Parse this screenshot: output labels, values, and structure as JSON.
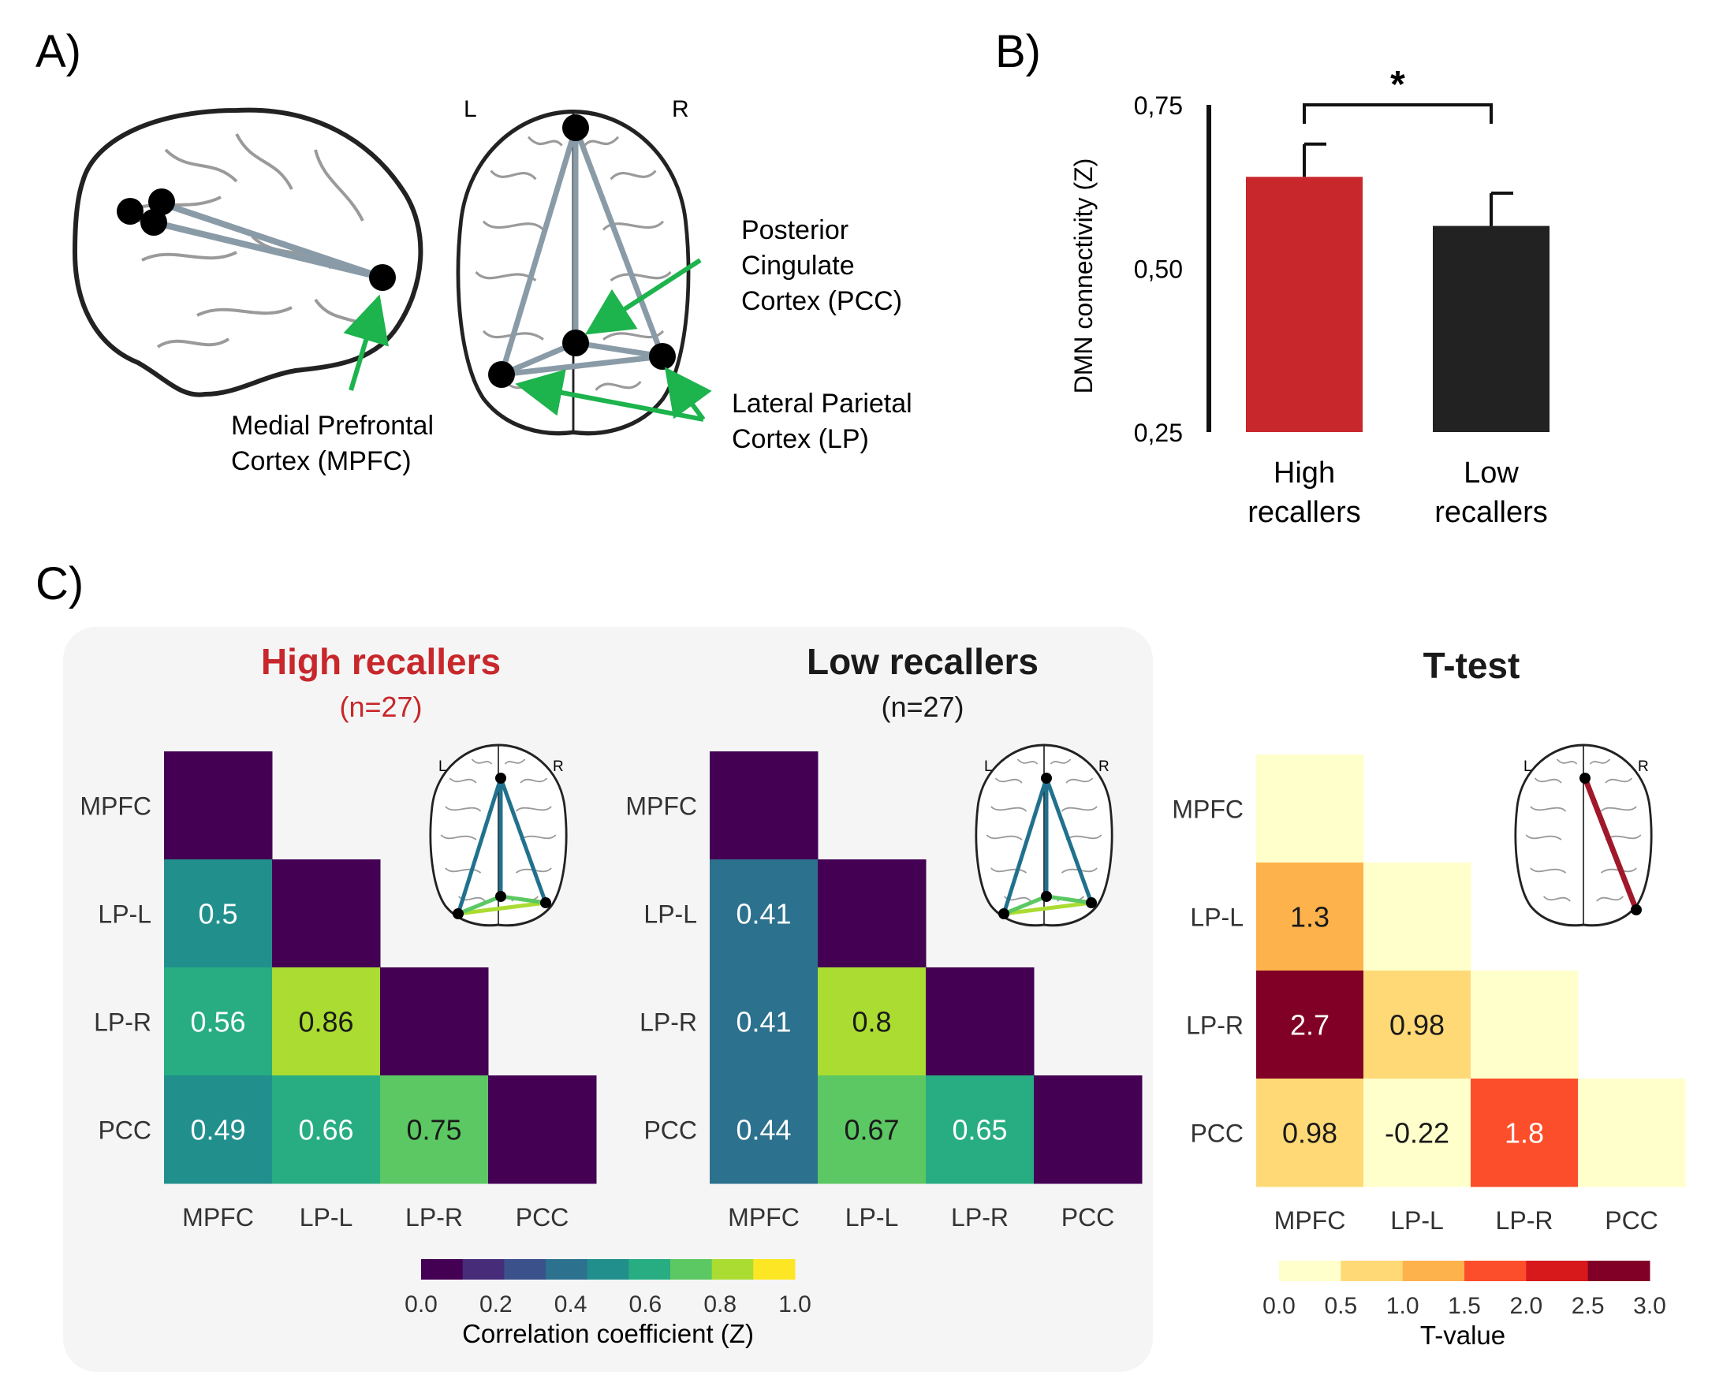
{
  "panel_a": {
    "label": "A)",
    "axial_left": "L",
    "axial_right": "R",
    "annotations": {
      "pcc": [
        "Posterior",
        "Cingulate",
        "Cortex (PCC)"
      ],
      "mpfc": [
        "Medial Prefrontal",
        "Cortex (MPFC)"
      ],
      "lp": [
        "Lateral Parietal",
        "Cortex (LP)"
      ]
    },
    "colors": {
      "edge": "#8a9ba8",
      "node": "#000000",
      "arrow": "#1db34d"
    }
  },
  "panel_b": {
    "label": "B)",
    "significance": "*",
    "chart_data": {
      "type": "bar",
      "categories": [
        "High recallers",
        "Low recallers"
      ],
      "category_lines": [
        [
          "High",
          "recallers"
        ],
        [
          "Low",
          "recallers"
        ]
      ],
      "values": [
        0.64,
        0.565
      ],
      "errors": [
        0.05,
        0.05
      ],
      "colors": [
        "#c8272b",
        "#222222"
      ],
      "ylabel": "DMN connectivity (Z)",
      "ylim": [
        0.25,
        0.75
      ],
      "yticks": [
        "0,25",
        "0,50",
        "0,75"
      ]
    }
  },
  "panel_c": {
    "label": "C)",
    "regions": [
      "MPFC",
      "LP-L",
      "LP-R",
      "PCC"
    ],
    "colors": {
      "high_title": "#c8272b",
      "low_title": "#1a1a1a",
      "panel_bg": "#f5f5f5"
    },
    "chart_data": [
      {
        "type": "heatmap",
        "title": "High recallers",
        "subtitle": "(n=27)",
        "cells": [
          {
            "row": "MPFC",
            "col": "MPFC",
            "value": 0,
            "label": ""
          },
          {
            "row": "LP-L",
            "col": "MPFC",
            "value": 0.5,
            "label": "0.5"
          },
          {
            "row": "LP-L",
            "col": "LP-L",
            "value": 0,
            "label": ""
          },
          {
            "row": "LP-R",
            "col": "MPFC",
            "value": 0.56,
            "label": "0.56"
          },
          {
            "row": "LP-R",
            "col": "LP-L",
            "value": 0.86,
            "label": "0.86"
          },
          {
            "row": "LP-R",
            "col": "LP-R",
            "value": 0,
            "label": ""
          },
          {
            "row": "PCC",
            "col": "MPFC",
            "value": 0.49,
            "label": "0.49"
          },
          {
            "row": "PCC",
            "col": "LP-L",
            "value": 0.66,
            "label": "0.66"
          },
          {
            "row": "PCC",
            "col": "LP-R",
            "value": 0.75,
            "label": "0.75"
          },
          {
            "row": "PCC",
            "col": "PCC",
            "value": 0,
            "label": ""
          }
        ]
      },
      {
        "type": "heatmap",
        "title": "Low recallers",
        "subtitle": "(n=27)",
        "cells": [
          {
            "row": "MPFC",
            "col": "MPFC",
            "value": 0,
            "label": ""
          },
          {
            "row": "LP-L",
            "col": "MPFC",
            "value": 0.41,
            "label": "0.41"
          },
          {
            "row": "LP-L",
            "col": "LP-L",
            "value": 0,
            "label": ""
          },
          {
            "row": "LP-R",
            "col": "MPFC",
            "value": 0.41,
            "label": "0.41"
          },
          {
            "row": "LP-R",
            "col": "LP-L",
            "value": 0.8,
            "label": "0.8"
          },
          {
            "row": "LP-R",
            "col": "LP-R",
            "value": 0,
            "label": ""
          },
          {
            "row": "PCC",
            "col": "MPFC",
            "value": 0.44,
            "label": "0.44"
          },
          {
            "row": "PCC",
            "col": "LP-L",
            "value": 0.67,
            "label": "0.67"
          },
          {
            "row": "PCC",
            "col": "LP-R",
            "value": 0.65,
            "label": "0.65"
          },
          {
            "row": "PCC",
            "col": "PCC",
            "value": 0,
            "label": ""
          }
        ]
      },
      {
        "type": "heatmap",
        "title": "T-test",
        "cells": [
          {
            "row": "MPFC",
            "col": "MPFC",
            "value": 0,
            "label": ""
          },
          {
            "row": "LP-L",
            "col": "MPFC",
            "value": 1.3,
            "label": "1.3"
          },
          {
            "row": "LP-L",
            "col": "LP-L",
            "value": 0,
            "label": ""
          },
          {
            "row": "LP-R",
            "col": "MPFC",
            "value": 2.7,
            "label": "2.7"
          },
          {
            "row": "LP-R",
            "col": "LP-L",
            "value": 0.98,
            "label": "0.98"
          },
          {
            "row": "LP-R",
            "col": "LP-R",
            "value": 0,
            "label": ""
          },
          {
            "row": "PCC",
            "col": "MPFC",
            "value": 0.98,
            "label": "0.98"
          },
          {
            "row": "PCC",
            "col": "LP-L",
            "value": -0.22,
            "label": "-0.22"
          },
          {
            "row": "PCC",
            "col": "LP-R",
            "value": 1.8,
            "label": "1.8"
          },
          {
            "row": "PCC",
            "col": "PCC",
            "value": 0,
            "label": ""
          }
        ]
      }
    ],
    "colorbars": [
      {
        "label": "Correlation coefficient (Z)",
        "ticks": [
          "0.0",
          "0.2",
          "0.4",
          "0.6",
          "0.8",
          "1.0"
        ],
        "range": [
          0,
          1
        ],
        "colors": [
          "#440154",
          "#472c7a",
          "#3b518b",
          "#2c718e",
          "#21908d",
          "#27ad81",
          "#5cc863",
          "#aadc32",
          "#fde725"
        ]
      },
      {
        "label": "T-value",
        "ticks": [
          "0.0",
          "0.5",
          "1.0",
          "1.5",
          "2.0",
          "2.5",
          "3.0"
        ],
        "range": [
          0,
          3
        ],
        "colors": [
          "#ffffcc",
          "#fed976",
          "#feb24c",
          "#fc4e2a",
          "#d7191c",
          "#800026"
        ]
      }
    ],
    "network_colors": {
      "mpfc_links": "#21718e",
      "lp_lp": "#aadc32",
      "pcc_lp": "#5cc863",
      "ttest_link": "#a0182a"
    }
  }
}
